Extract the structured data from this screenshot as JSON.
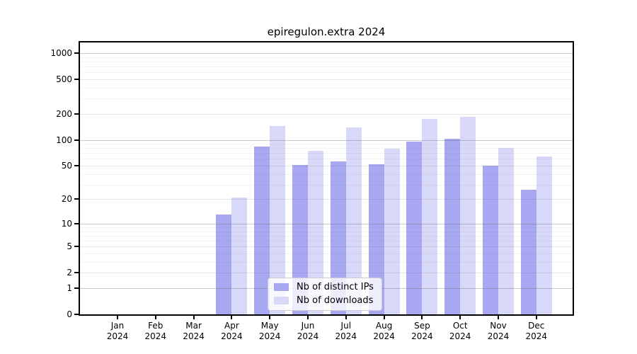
{
  "chart_data": {
    "type": "bar",
    "title": "epiregulon.extra 2024",
    "categories": [
      "Jan 2024",
      "Feb 2024",
      "Mar 2024",
      "Apr 2024",
      "May 2024",
      "Jun 2024",
      "Jul 2024",
      "Aug 2024",
      "Sep 2024",
      "Oct 2024",
      "Nov 2024",
      "Dec 2024"
    ],
    "series": [
      {
        "name": "Nb of distinct IPs",
        "color": "#a7a7f2",
        "values": [
          0,
          0,
          0,
          13,
          84,
          51,
          56,
          52,
          96,
          103,
          50,
          26
        ]
      },
      {
        "name": "Nb of downloads",
        "color": "#d8d8f8",
        "values": [
          0,
          0,
          0,
          21,
          145,
          75,
          140,
          79,
          174,
          185,
          80,
          64
        ]
      }
    ],
    "xlabel": "",
    "ylabel": "",
    "yscale": "log1p",
    "yticks": [
      0,
      1,
      2,
      5,
      10,
      20,
      50,
      100,
      200,
      500,
      1000
    ],
    "ylim": [
      0,
      1320
    ],
    "grid": true,
    "legend_position": "lower center"
  },
  "style": {
    "axis_color": "#000000",
    "grid_major_rgba": "rgba(100,100,100,0.35)",
    "grid_mid_rgba": "rgba(100,100,100,0.16)",
    "grid_minor_rgba": "rgba(100,100,100,0.07)"
  }
}
